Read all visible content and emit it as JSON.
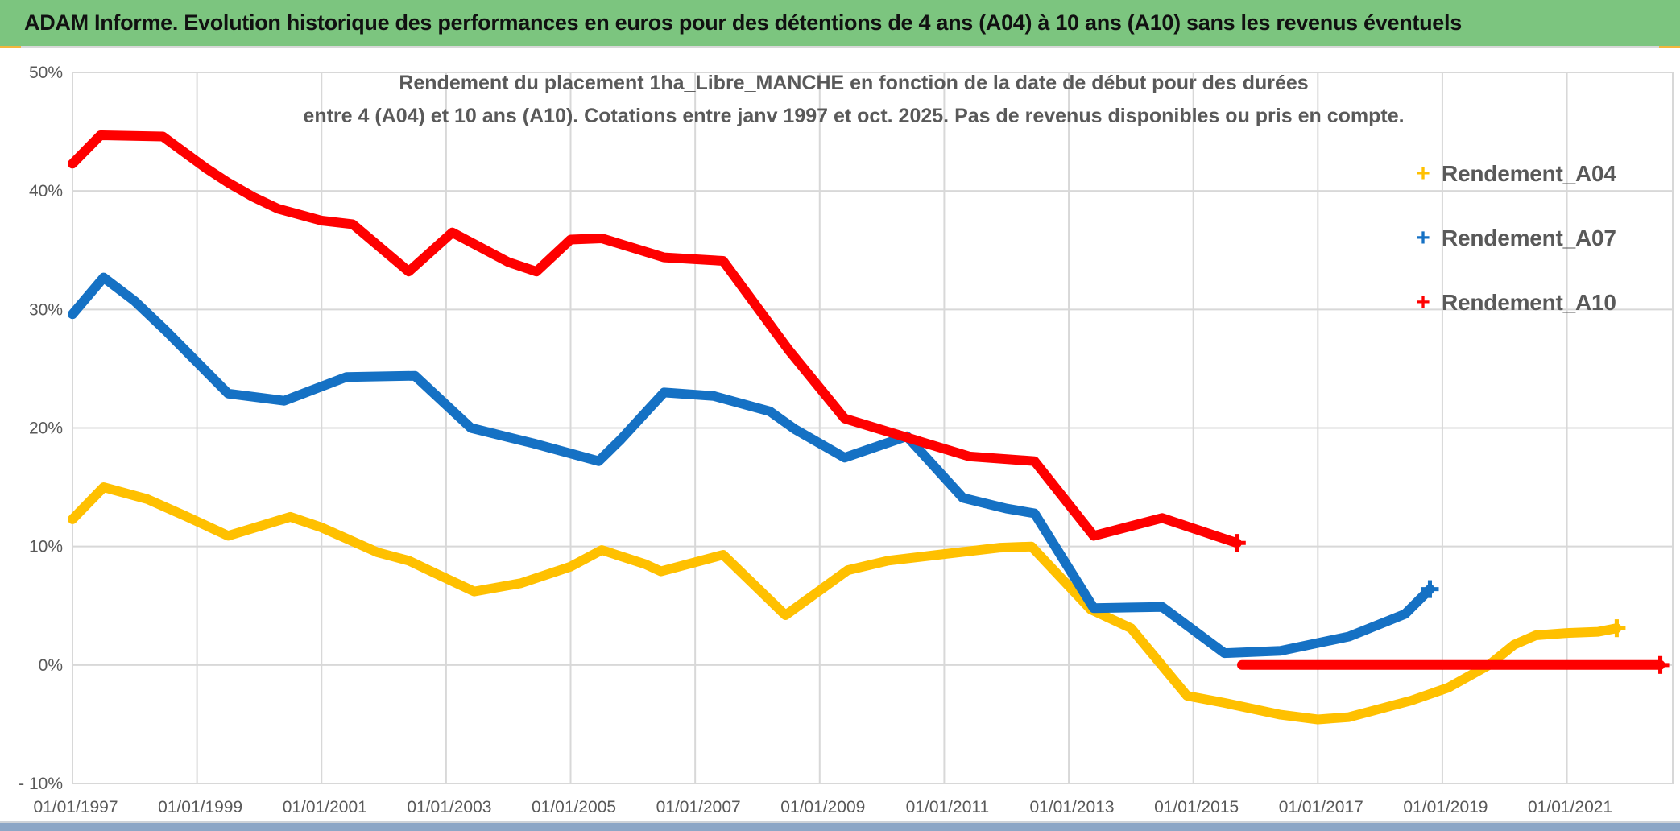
{
  "header": {
    "title": "ADAM Informe. Evolution historique des performances en euros pour des détentions de 4 ans (A04) à 10 ans (A10) sans les revenus éventuels",
    "bg_color": "#7CC57F",
    "text_color": "#111111"
  },
  "accents": {
    "corner_color": "#F2B63D",
    "bottom_bar_color": "#8CA6C6",
    "hairline_color": "#D8D8D8"
  },
  "chart_data": {
    "type": "line",
    "title_line1": "Rendement du placement 1ha_Libre_MANCHE en fonction de la date de début pour des durées",
    "title_line2": "entre 4 (A04) et 10 ans (A10). Cotations entre janv 1997 et oct. 2025. Pas de revenus disponibles ou pris en compte.",
    "grid_color": "#D8D8D8",
    "axis_text_color": "#595959",
    "legend_position": "right",
    "grid": true,
    "x_axis": {
      "min_year": 1997.0,
      "max_year": 2022.7,
      "tick_years": [
        1997,
        1999,
        2001,
        2003,
        2005,
        2007,
        2009,
        2011,
        2013,
        2015,
        2017,
        2019,
        2021
      ],
      "tick_labels": [
        "01/01/1997",
        "01/01/1999",
        "01/01/2001",
        "01/01/2003",
        "01/01/2005",
        "01/01/2007",
        "01/01/2009",
        "01/01/2011",
        "01/01/2013",
        "01/01/2015",
        "01/01/2017",
        "01/01/2019",
        "01/01/2021"
      ]
    },
    "y_axis": {
      "min": -10,
      "max": 50,
      "tick_values": [
        50,
        40,
        30,
        20,
        10,
        0,
        -10
      ],
      "tick_labels": [
        "50%",
        "40%",
        "30%",
        "20%",
        "10%",
        "0%",
        "- 10%"
      ]
    },
    "series": [
      {
        "name": "Rendement_A04",
        "color": "#FFC000",
        "marker": "+",
        "segments": [
          [
            [
              1997.0,
              12.3
            ],
            [
              1997.5,
              15.0
            ],
            [
              1998.2,
              14.0
            ],
            [
              1998.8,
              12.6
            ],
            [
              1999.5,
              10.9
            ],
            [
              2000.5,
              12.5
            ],
            [
              2001.0,
              11.6
            ],
            [
              2001.9,
              9.5
            ],
            [
              2002.4,
              8.8
            ],
            [
              2002.8,
              7.8
            ],
            [
              2003.45,
              6.2
            ],
            [
              2004.2,
              6.9
            ],
            [
              2005.0,
              8.3
            ],
            [
              2005.5,
              9.7
            ],
            [
              2006.2,
              8.5
            ],
            [
              2006.45,
              7.9
            ],
            [
              2007.45,
              9.3
            ],
            [
              2008.45,
              4.2
            ],
            [
              2009.45,
              8.0
            ],
            [
              2010.1,
              8.8
            ],
            [
              2010.9,
              9.3
            ],
            [
              2011.9,
              9.9
            ],
            [
              2012.4,
              10.0
            ],
            [
              2013.35,
              4.7
            ],
            [
              2014.0,
              3.1
            ],
            [
              2014.9,
              -2.6
            ],
            [
              2015.5,
              -3.2
            ],
            [
              2016.4,
              -4.2
            ],
            [
              2017.0,
              -4.6
            ],
            [
              2017.5,
              -4.4
            ],
            [
              2018.5,
              -3.0
            ],
            [
              2019.1,
              -1.9
            ],
            [
              2019.75,
              0.0
            ],
            [
              2020.15,
              1.7
            ],
            [
              2020.5,
              2.5
            ],
            [
              2021.0,
              2.7
            ],
            [
              2021.5,
              2.8
            ],
            [
              2021.8,
              3.1
            ]
          ]
        ]
      },
      {
        "name": "Rendement_A07",
        "color": "#1571C4",
        "marker": "+",
        "segments": [
          [
            [
              1997.0,
              29.6
            ],
            [
              1997.5,
              32.7
            ],
            [
              1998.0,
              30.7
            ],
            [
              1998.5,
              28.2
            ],
            [
              1999.5,
              22.9
            ],
            [
              2000.4,
              22.3
            ],
            [
              2001.4,
              24.3
            ],
            [
              2002.5,
              24.4
            ],
            [
              2003.4,
              20.0
            ],
            [
              2004.4,
              18.7
            ],
            [
              2005.45,
              17.2
            ],
            [
              2005.8,
              19.0
            ],
            [
              2006.5,
              23.0
            ],
            [
              2007.3,
              22.7
            ],
            [
              2008.2,
              21.4
            ],
            [
              2008.6,
              19.9
            ],
            [
              2009.4,
              17.5
            ],
            [
              2010.4,
              19.3
            ],
            [
              2011.3,
              14.1
            ],
            [
              2012.0,
              13.2
            ],
            [
              2012.45,
              12.8
            ],
            [
              2013.4,
              4.8
            ],
            [
              2014.5,
              4.9
            ],
            [
              2015.5,
              1.0
            ],
            [
              2016.4,
              1.2
            ],
            [
              2017.5,
              2.4
            ],
            [
              2018.4,
              4.3
            ],
            [
              2018.8,
              6.4
            ]
          ]
        ]
      },
      {
        "name": "Rendement_A10",
        "color": "#FE0000",
        "marker": "+",
        "segments": [
          [
            [
              1997.0,
              42.3
            ],
            [
              1997.45,
              44.7
            ],
            [
              1998.45,
              44.6
            ],
            [
              1999.15,
              41.9
            ],
            [
              1999.5,
              40.7
            ],
            [
              1999.9,
              39.5
            ],
            [
              2000.3,
              38.5
            ],
            [
              2001.0,
              37.5
            ],
            [
              2001.5,
              37.2
            ],
            [
              2002.4,
              33.2
            ],
            [
              2003.1,
              36.5
            ],
            [
              2004.0,
              34.0
            ],
            [
              2004.45,
              33.2
            ],
            [
              2005.0,
              35.9
            ],
            [
              2005.5,
              36.0
            ],
            [
              2006.5,
              34.4
            ],
            [
              2007.45,
              34.1
            ],
            [
              2008.5,
              26.6
            ],
            [
              2009.4,
              20.8
            ],
            [
              2010.4,
              19.2
            ],
            [
              2011.4,
              17.6
            ],
            [
              2012.45,
              17.2
            ],
            [
              2013.4,
              10.9
            ],
            [
              2014.5,
              12.4
            ],
            [
              2015.7,
              10.3
            ]
          ],
          [
            [
              2015.78,
              0.0
            ],
            [
              2022.5,
              0.0
            ]
          ]
        ]
      }
    ]
  }
}
